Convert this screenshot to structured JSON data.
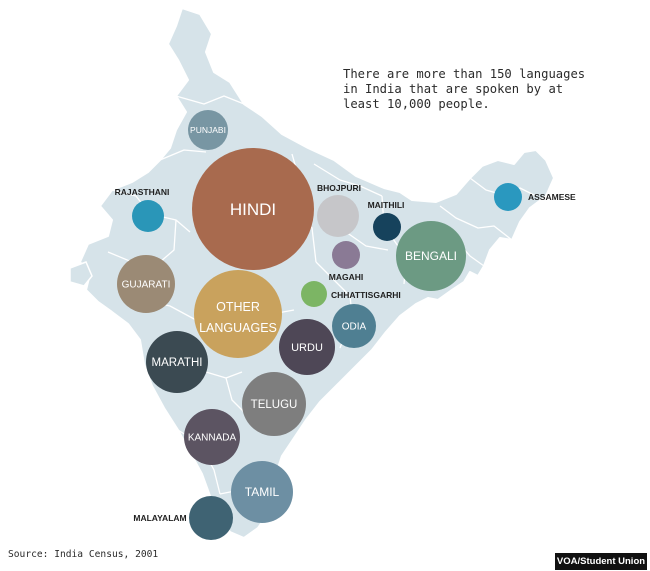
{
  "note_lines": [
    "There are more than 150 languages",
    "in India that are spoken by at",
    "least 10,000 people."
  ],
  "source": "Source: India Census, 2001",
  "credit": "VOA/Student Union",
  "colors": {
    "map_fill": "#d6e3e9",
    "map_border": "#ffffff",
    "text": "#2b2b2b"
  },
  "languages": [
    {
      "name": "HINDI",
      "color": "#a86a4e",
      "label": "inside"
    },
    {
      "name": "OTHER LANGUAGES",
      "color": "#c9a25d",
      "label": "inside"
    },
    {
      "name": "BENGALI",
      "color": "#6c9a83",
      "label": "inside"
    },
    {
      "name": "TELUGU",
      "color": "#7e7e7e",
      "label": "inside"
    },
    {
      "name": "MARATHI",
      "color": "#3b4a52",
      "label": "inside"
    },
    {
      "name": "TAMIL",
      "color": "#6d8fa3",
      "label": "inside"
    },
    {
      "name": "URDU",
      "color": "#4e4756",
      "label": "inside"
    },
    {
      "name": "GUJARATI",
      "color": "#9b8a75",
      "label": "inside"
    },
    {
      "name": "KANNADA",
      "color": "#5c5462",
      "label": "inside"
    },
    {
      "name": "MALAYALAM",
      "color": "#3f6373",
      "label": "outside"
    },
    {
      "name": "ODIA",
      "color": "#4f7f92",
      "label": "inside"
    },
    {
      "name": "PUNJABI",
      "color": "#7896a3",
      "label": "inside"
    },
    {
      "name": "BHOJPURI",
      "color": "#c6c6c9",
      "label": "outside"
    },
    {
      "name": "RAJASTHANI",
      "color": "#2a96b8",
      "label": "outside"
    },
    {
      "name": "ASSAMESE",
      "color": "#2a98bf",
      "label": "outside"
    },
    {
      "name": "MAITHILI",
      "color": "#16425c",
      "label": "outside"
    },
    {
      "name": "MAGAHI",
      "color": "#8a7a95",
      "label": "outside"
    },
    {
      "name": "CHHATTISGARHI",
      "color": "#7cb564",
      "label": "outside"
    }
  ]
}
